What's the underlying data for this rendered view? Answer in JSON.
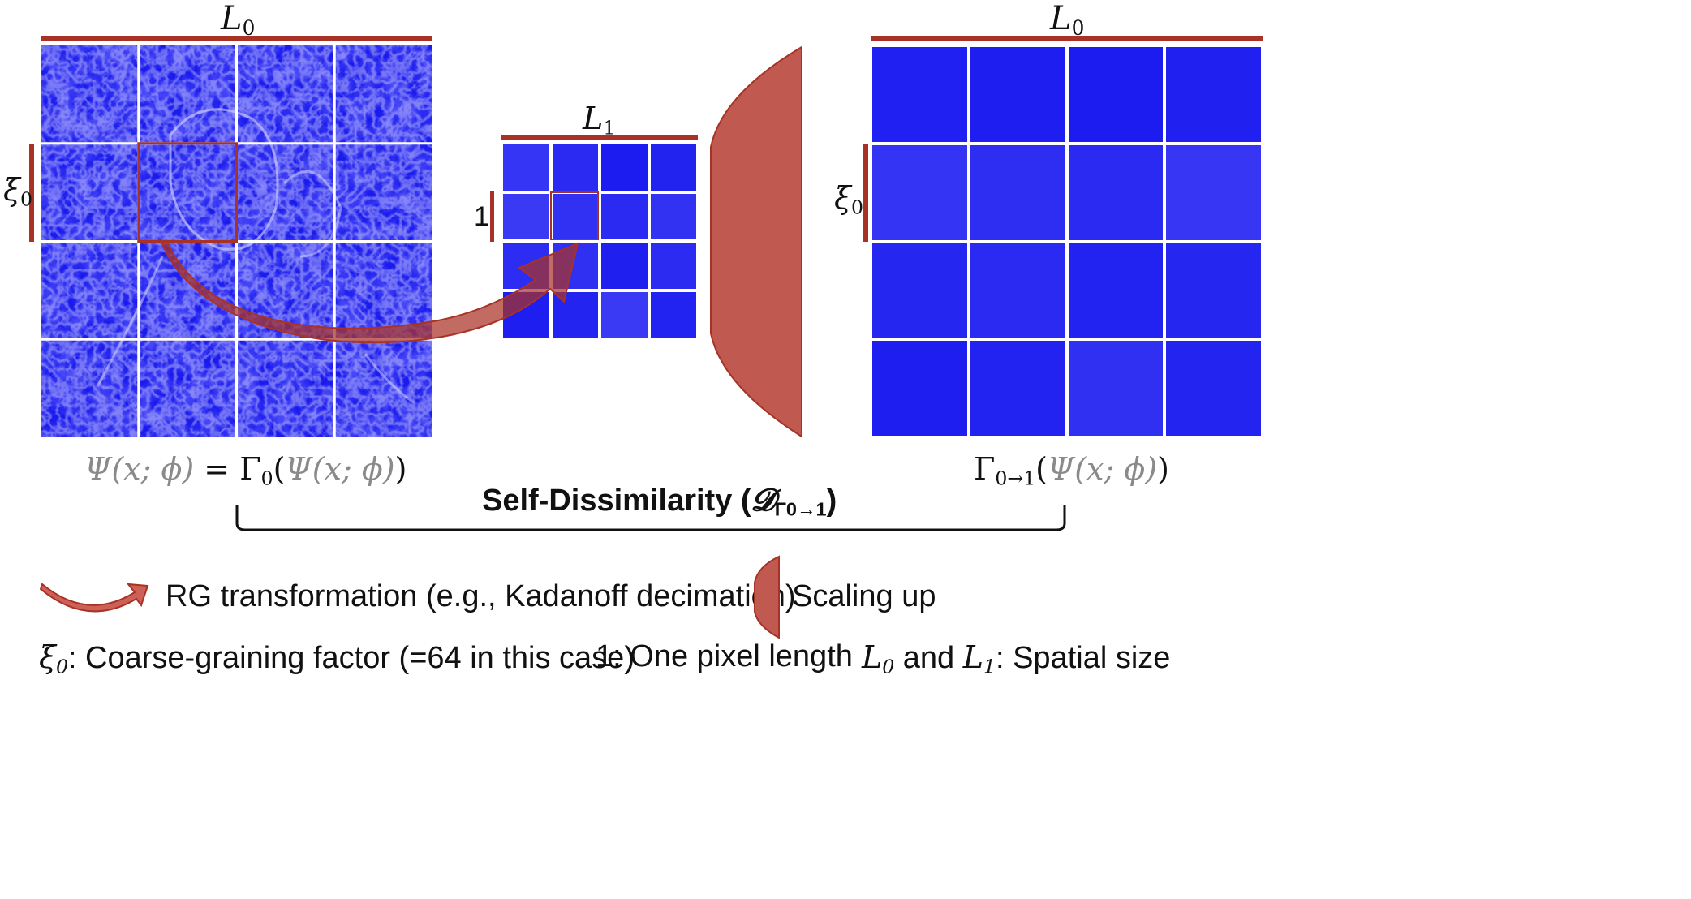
{
  "left_panel": {
    "top_label": "L",
    "top_label_sub": "0",
    "side_label": "ξ",
    "side_label_sub": "0",
    "caption": {
      "psi": "Ψ(x; ϕ)",
      "equals": " = ",
      "gamma": "Γ",
      "gamma_sub": "0",
      "open": "(",
      "psi_inner": "Ψ(x; ϕ)",
      "close": ")"
    }
  },
  "middle_panel": {
    "top_label": "L",
    "top_label_sub": "1",
    "side_label": "1"
  },
  "right_panel": {
    "top_label": "L",
    "top_label_sub": "0",
    "side_label": "ξ",
    "side_label_sub": "0",
    "caption": {
      "gamma": "Γ",
      "gamma_sub": "0→1",
      "open": "(",
      "psi_inner": "Ψ(x; ϕ)",
      "close": ")"
    }
  },
  "bracket": {
    "label": "Self-Dissimilarity (",
    "symbol": "𝓓",
    "symbol_sub": "Γ0→1",
    "close": ")"
  },
  "legend": {
    "rg_label": "RG transformation (e.g., Kadanoff decimation)",
    "scale_label": "Scaling up",
    "xi_symbol": "ξ",
    "xi_sub": "0",
    "xi_desc": ": Coarse-graining factor (=64 in this case)",
    "one_symbol": "1",
    "one_desc": ": One pixel length",
    "l0_symbol": "L",
    "l0_sub": "0",
    "and": " and ",
    "l1_symbol": "L",
    "l1_sub": "1",
    "l_desc": ": Spatial size"
  },
  "colors": {
    "accent_red": "#a93226",
    "arrow_fill": "#c0392b",
    "grid_blue": "#2a2af2"
  },
  "middle_cells": [
    "#3535f5",
    "#2a2af2",
    "#1c1cf0",
    "#2323f0",
    "#3a3af4",
    "#3131f3",
    "#2a2af2",
    "#3232f2",
    "#2c2cf3",
    "#3030f3",
    "#1f1ff0",
    "#2b2bf2",
    "#1e1ef0",
    "#2424f1",
    "#3a3af4",
    "#2222f1"
  ],
  "right_cells": [
    "#2020f2",
    "#1e1ef0",
    "#1c1cf0",
    "#2020f1",
    "#3434f4",
    "#2e2ef3",
    "#2a2af2",
    "#3636f4",
    "#2626f1",
    "#2a2af2",
    "#2222f1",
    "#2626f1",
    "#1e1ef0",
    "#2222f1",
    "#3030f3",
    "#2424f1"
  ]
}
